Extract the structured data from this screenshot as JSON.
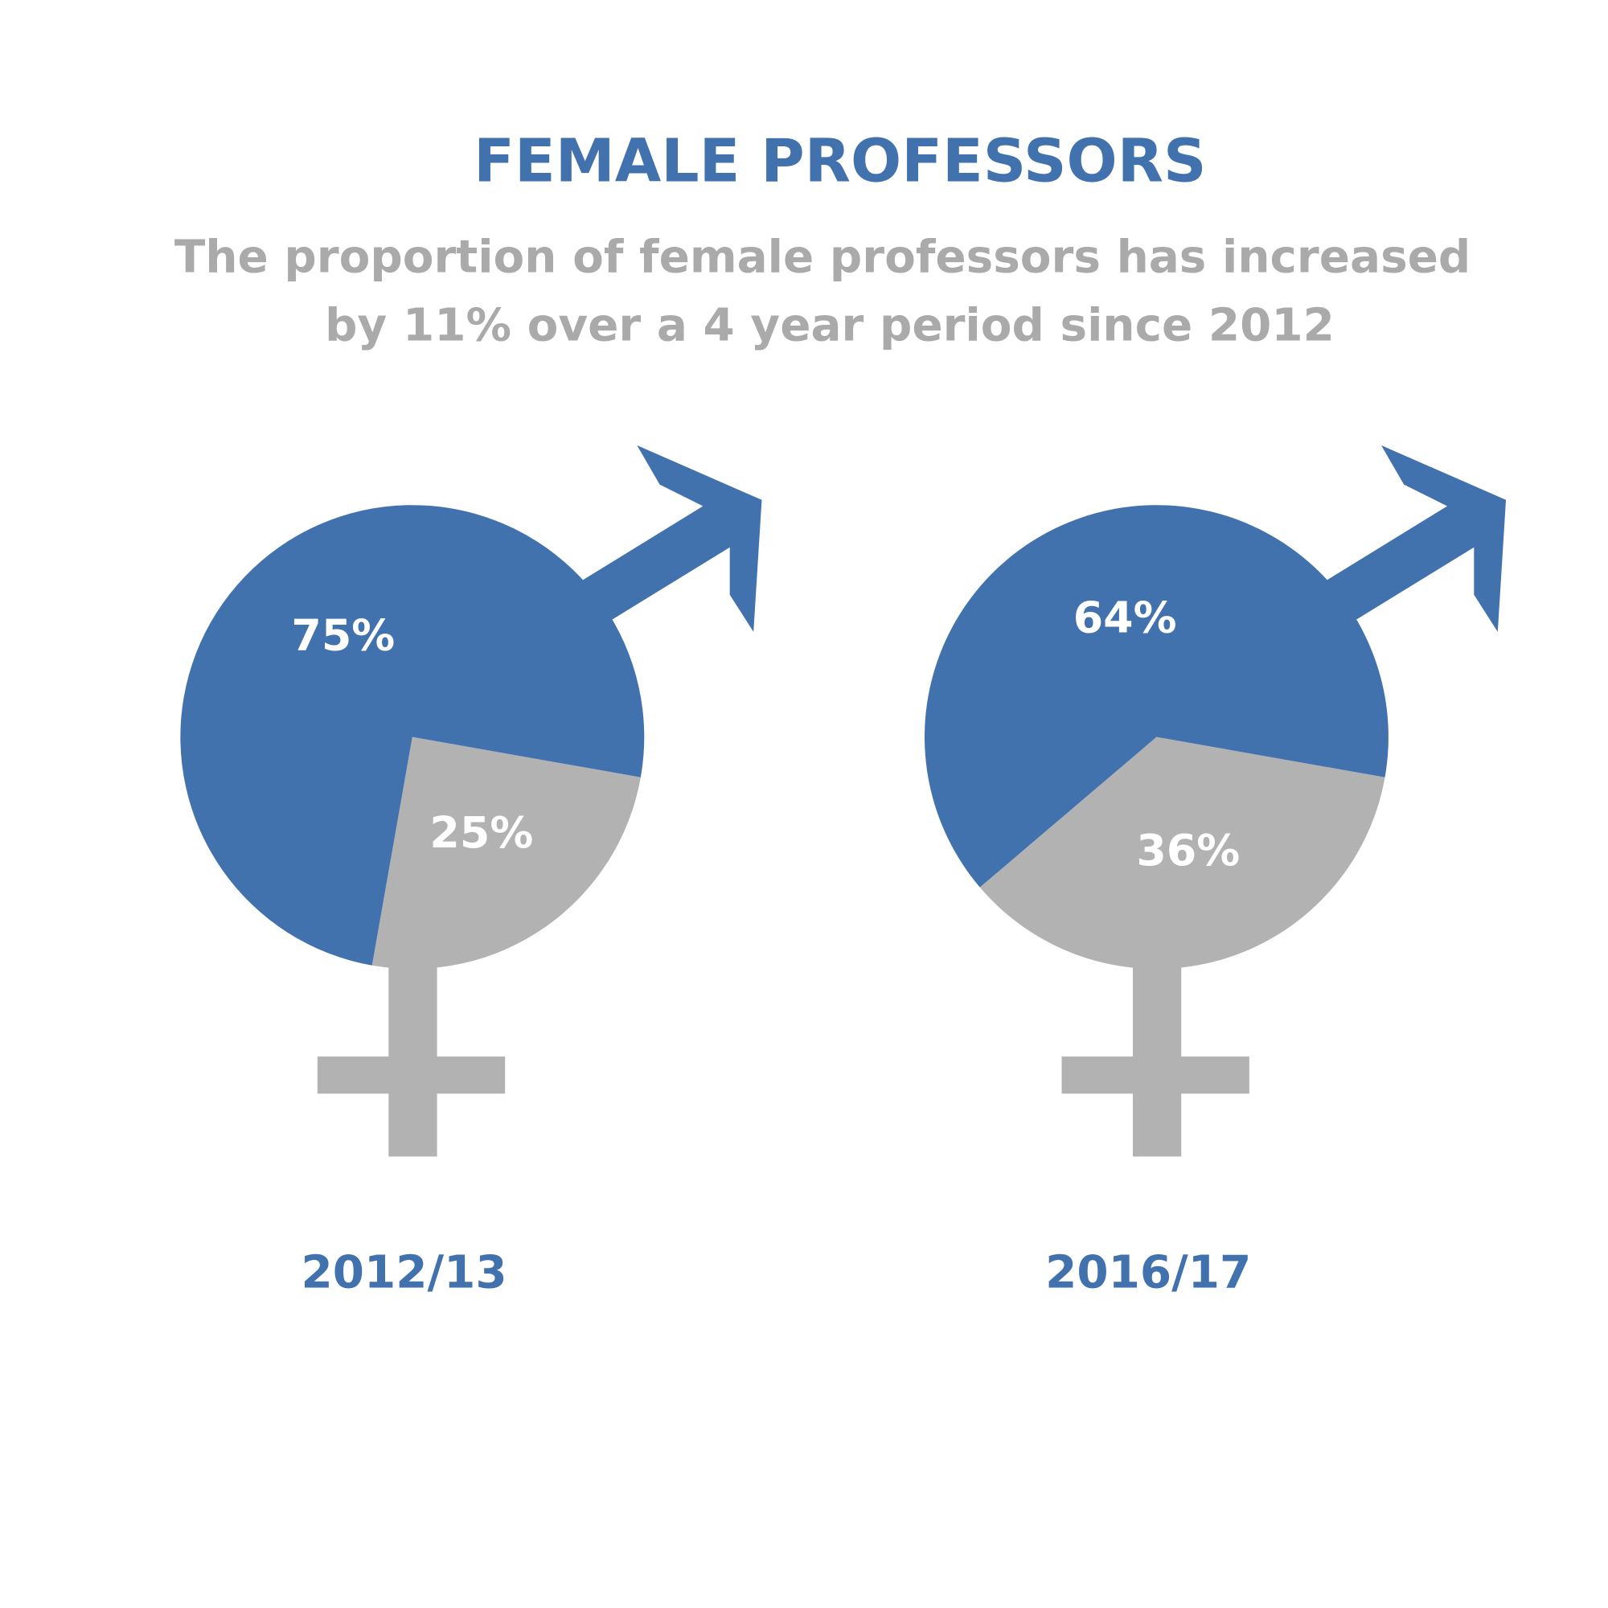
{
  "title": "FEMALE PROFESSORS",
  "subtitle": [
    "The proportion of female professors has increased",
    "by 11% over a 4 year period since 2012"
  ],
  "chart_data": [
    {
      "type": "pie",
      "title": "2012/13",
      "values": [
        75,
        25
      ],
      "value_labels": [
        "75%",
        "25%"
      ],
      "colors": [
        "#4272ae",
        "#b2b2b2"
      ]
    },
    {
      "type": "pie",
      "title": "2016/17",
      "values": [
        64,
        36
      ],
      "value_labels": [
        "64%",
        "36%"
      ],
      "colors": [
        "#4272ae",
        "#b2b2b2"
      ]
    }
  ]
}
